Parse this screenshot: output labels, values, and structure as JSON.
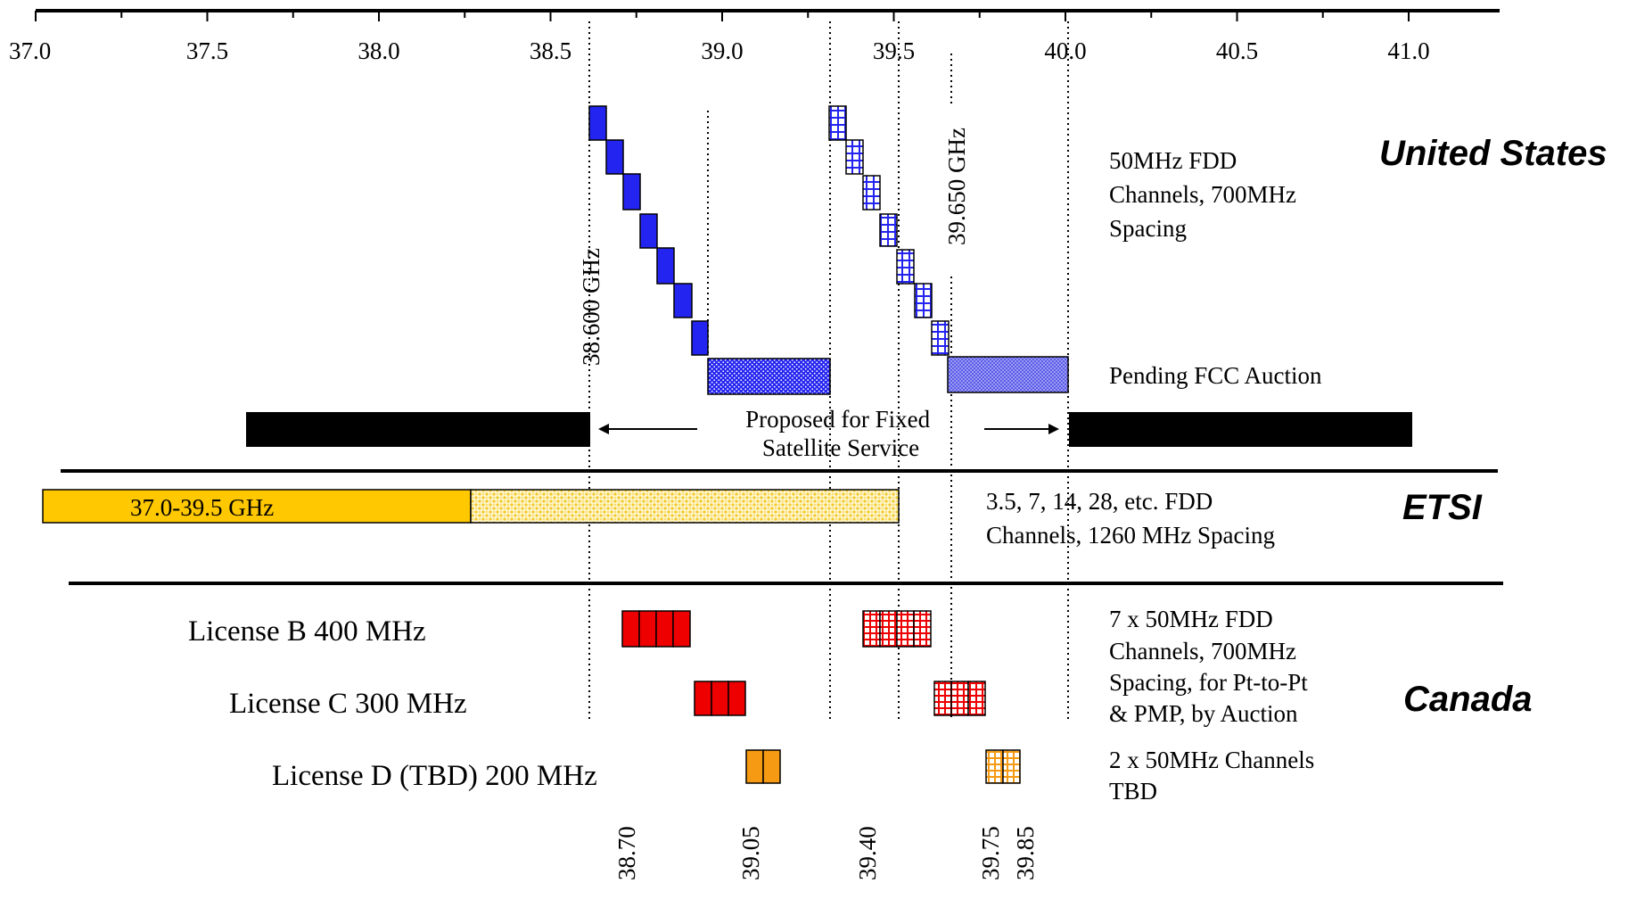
{
  "axis": {
    "ticks": [
      "37.0",
      "37.5",
      "38.0",
      "38.5",
      "39.0",
      "39.5",
      "40.0",
      "40.5",
      "41.0"
    ]
  },
  "regions": {
    "us": "United States",
    "etsi": "ETSI",
    "canada": "Canada"
  },
  "us": {
    "label_38600": "38.600 GHz",
    "label_39650": "39.650 GHz",
    "fdd_note": [
      "50MHz FDD",
      "Channels, 700MHz",
      "Spacing"
    ],
    "auction_note": "Pending FCC Auction",
    "fss_note": [
      "Proposed for Fixed",
      "Satellite Service"
    ]
  },
  "etsi": {
    "band_label": "37.0-39.5 GHz",
    "fdd_note": [
      "3.5, 7, 14, 28, etc. FDD",
      "Channels, 1260 MHz Spacing"
    ]
  },
  "canada": {
    "license_b": "License B 400 MHz",
    "license_c": "License C 300 MHz",
    "license_d": "License D (TBD) 200 MHz",
    "fdd_note": [
      "7 x 50MHz FDD",
      "Channels, 700MHz",
      "Spacing, for Pt-to-Pt",
      "& PMP, by Auction"
    ],
    "tbd_note": [
      "2 x 50MHz Channels",
      "TBD"
    ],
    "freq_labels": [
      "38.70",
      "39.05",
      "39.40",
      "39.75",
      "39.85"
    ]
  },
  "colors": {
    "us_block": "#2424f0",
    "us_hatch": "#2424f0",
    "canada_red": "#ee0000",
    "canada_orange": "#f59a12",
    "etsi_yellow": "#ffc800",
    "etsi_dots": "#f3c928",
    "fss_bar": "#000000"
  }
}
